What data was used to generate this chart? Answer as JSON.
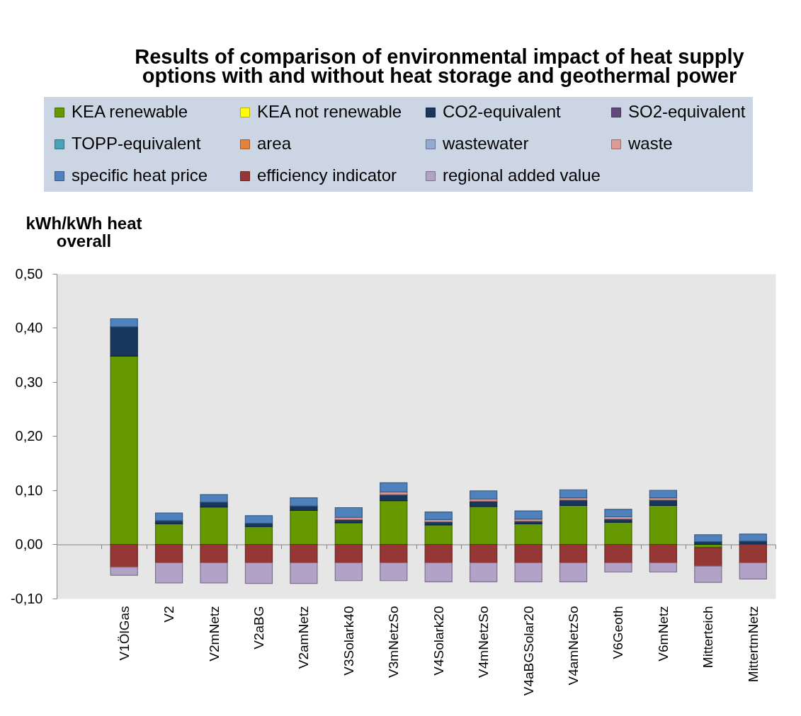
{
  "chart_data": {
    "type": "bar",
    "title": "Results of comparison of environmental impact of heat supply options with and without heat storage and geothermal power",
    "ylabel": "kWh/kWh heat overall",
    "categories": [
      null,
      "V1ÖlGas",
      "V2",
      "V2mNetz",
      "V2aBG",
      "V2amNetz",
      "V3Solark40",
      "V3mNetzSo",
      "V4Solark20",
      "V4mNetzSo",
      "V4aBGSolar20",
      "V4amNetzSo",
      "V6Geoth",
      "V6mNetz",
      "Mitterteich",
      "MittertmNetz"
    ],
    "stacked": true,
    "series": [
      {
        "name": "KEA renewable",
        "color": "#669900",
        "values": [
          null,
          0.348,
          0.038,
          0.069,
          0.033,
          0.063,
          0.04,
          0.081,
          0.036,
          0.07,
          0.038,
          0.072,
          0.041,
          0.072,
          -0.006,
          null
        ]
      },
      {
        "name": "KEA not renewable",
        "color": "#ffff00",
        "values": [
          null,
          null,
          null,
          null,
          null,
          null,
          null,
          null,
          null,
          null,
          null,
          null,
          null,
          null,
          null,
          null
        ]
      },
      {
        "name": "CO2-equivalent",
        "color": "#17375e",
        "values": [
          null,
          0.054,
          0.006,
          0.009,
          0.006,
          0.008,
          0.006,
          0.011,
          0.006,
          0.01,
          0.005,
          0.01,
          0.006,
          0.01,
          0.005,
          0.006
        ]
      },
      {
        "name": "SO2-equivalent",
        "color": "#604a7b",
        "values": [
          null,
          null,
          null,
          null,
          null,
          null,
          null,
          null,
          null,
          null,
          null,
          null,
          null,
          null,
          null,
          null
        ]
      },
      {
        "name": "TOPP-equivalent",
        "color": "#4aa3b8",
        "values": [
          null,
          null,
          null,
          null,
          null,
          null,
          null,
          null,
          null,
          null,
          null,
          null,
          null,
          null,
          null,
          null
        ]
      },
      {
        "name": "area",
        "color": "#e3823a",
        "values": [
          null,
          null,
          null,
          null,
          null,
          null,
          null,
          null,
          null,
          null,
          null,
          null,
          null,
          null,
          null,
          null
        ]
      },
      {
        "name": "wastewater",
        "color": "#95aad2",
        "values": [
          null,
          null,
          null,
          null,
          null,
          null,
          null,
          null,
          null,
          null,
          null,
          null,
          null,
          null,
          null,
          null
        ]
      },
      {
        "name": "waste",
        "color": "#db9a95",
        "values": [
          null,
          null,
          null,
          null,
          null,
          null,
          0.004,
          0.005,
          0.004,
          0.004,
          0.004,
          0.004,
          0.004,
          0.004,
          null,
          null
        ]
      },
      {
        "name": "specific heat price",
        "color": "#4f81bd",
        "values": [
          null,
          0.015,
          0.014,
          0.014,
          0.014,
          0.015,
          0.018,
          0.017,
          0.014,
          0.015,
          0.015,
          0.015,
          0.014,
          0.014,
          0.013,
          0.013
        ]
      },
      {
        "name": "efficiency indicator",
        "color": "#953735",
        "values": [
          null,
          -0.042,
          -0.034,
          -0.034,
          -0.034,
          -0.034,
          -0.034,
          -0.034,
          -0.034,
          -0.034,
          -0.034,
          -0.034,
          -0.034,
          -0.034,
          -0.034,
          -0.034
        ]
      },
      {
        "name": "regional added value",
        "color": "#b3a2c7",
        "values": [
          null,
          -0.015,
          -0.037,
          -0.037,
          -0.038,
          -0.038,
          -0.033,
          -0.033,
          -0.035,
          -0.035,
          -0.035,
          -0.035,
          -0.017,
          -0.017,
          -0.03,
          -0.03
        ]
      }
    ],
    "ylim": [
      -0.1,
      0.5
    ],
    "yticks": [
      {
        "value": -0.1,
        "label": "-0,10"
      },
      {
        "value": 0.0,
        "label": "0,00"
      },
      {
        "value": 0.1,
        "label": "0,10"
      },
      {
        "value": 0.2,
        "label": "0,20"
      },
      {
        "value": 0.3,
        "label": "0,30"
      },
      {
        "value": 0.4,
        "label": "0,40"
      },
      {
        "value": 0.5,
        "label": "0,50"
      }
    ],
    "legend": "top"
  }
}
